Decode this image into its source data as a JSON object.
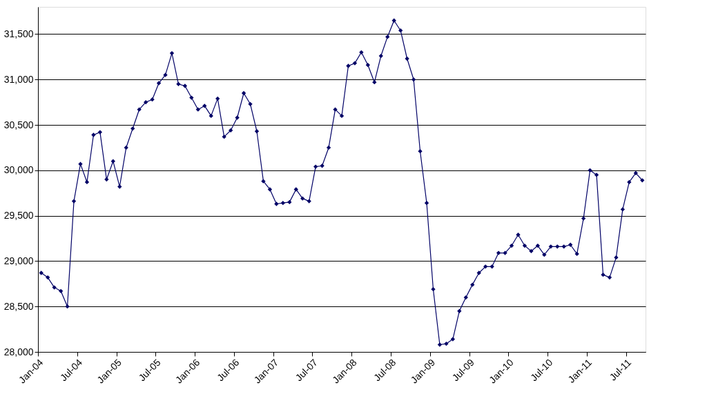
{
  "chart_data": {
    "type": "line",
    "categories": [
      "Jan-04",
      null,
      null,
      null,
      null,
      null,
      "Jul-04",
      null,
      null,
      null,
      null,
      null,
      "Jan-05",
      null,
      null,
      null,
      null,
      null,
      "Jul-05",
      null,
      null,
      null,
      null,
      null,
      "Jan-06",
      null,
      null,
      null,
      null,
      null,
      "Jul-06",
      null,
      null,
      null,
      null,
      null,
      "Jan-07",
      null,
      null,
      null,
      null,
      null,
      "Jul-07",
      null,
      null,
      null,
      null,
      null,
      "Jan-08",
      null,
      null,
      null,
      null,
      null,
      "Jul-08",
      null,
      null,
      null,
      null,
      null,
      "Jan-09",
      null,
      null,
      null,
      null,
      null,
      "Jul-09",
      null,
      null,
      null,
      null,
      null,
      "Jan-10",
      null,
      null,
      null,
      null,
      null,
      "Jul-10",
      null,
      null,
      null,
      null,
      null,
      "Jan-11",
      null,
      null,
      null,
      null,
      null,
      "Jul-11",
      null,
      null
    ],
    "series": [
      {
        "color": "#000066",
        "values": [
          28870,
          28820,
          28710,
          28670,
          28500,
          29660,
          30070,
          29870,
          30390,
          30420,
          29900,
          30100,
          29820,
          30250,
          30460,
          30670,
          30750,
          30780,
          30960,
          31050,
          31290,
          30950,
          30930,
          30800,
          30670,
          30710,
          30600,
          30790,
          30370,
          30440,
          30580,
          30850,
          30730,
          30430,
          29880,
          29790,
          29630,
          29640,
          29650,
          29790,
          29690,
          29660,
          30040,
          30050,
          30250,
          30670,
          30600,
          31150,
          31180,
          31300,
          31160,
          30970,
          31260,
          31470,
          31650,
          31540,
          31230,
          31000,
          30210,
          29640,
          28690,
          28080,
          28090,
          28140,
          28450,
          28600,
          28740,
          28870,
          28940,
          28940,
          29090,
          29090,
          29170,
          29290,
          29170,
          29110,
          29170,
          29070,
          29160,
          29160,
          29160,
          29180,
          29080,
          29470,
          30000,
          29950,
          28850,
          28820,
          29040,
          29570,
          29870,
          29970,
          29890
        ]
      }
    ],
    "ylim": [
      28000,
      31800
    ],
    "yticks": [
      {
        "value": 28000,
        "label": "28,000"
      },
      {
        "value": 28500,
        "label": "28,500"
      },
      {
        "value": 29000,
        "label": "29,000"
      },
      {
        "value": 29500,
        "label": "29,500"
      },
      {
        "value": 30000,
        "label": "30,000"
      },
      {
        "value": 30500,
        "label": "30,500"
      },
      {
        "value": 31000,
        "label": "31,000"
      },
      {
        "value": 31500,
        "label": "31,500"
      }
    ],
    "grid": "y",
    "legend": false,
    "marker": "diamond",
    "line_style": "solid"
  }
}
